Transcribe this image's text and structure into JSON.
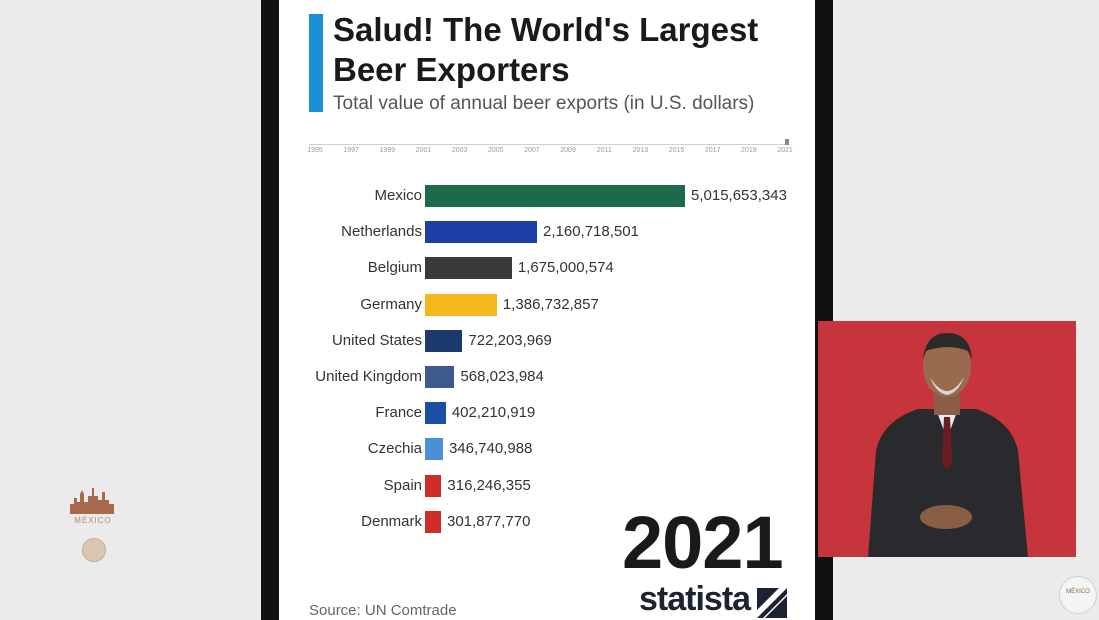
{
  "left_logo": {
    "text": "MÉXICO"
  },
  "header": {
    "title": "Salud! The World's Largest Beer Exporters",
    "subtitle": "Total value of annual beer exports (in U.S. dollars)"
  },
  "timeline": {
    "labels": [
      "1995",
      "1997",
      "1999",
      "2001",
      "2003",
      "2005",
      "2007",
      "2009",
      "2011",
      "2013",
      "2015",
      "2017",
      "2019",
      "2021"
    ]
  },
  "chart_data": {
    "type": "bar",
    "orientation": "horizontal",
    "title": "Salud! The World's Largest Beer Exporters",
    "subtitle": "Total value of annual beer exports (in U.S. dollars)",
    "categories": [
      "Mexico",
      "Netherlands",
      "Belgium",
      "Germany",
      "United States",
      "United Kingdom",
      "France",
      "Czechia",
      "Spain",
      "Denmark"
    ],
    "values": [
      5015653343,
      2160718501,
      1675000574,
      1386732857,
      722203969,
      568023984,
      402210919,
      346740988,
      316246355,
      301877770
    ],
    "value_labels": [
      "5,015,653,343",
      "2,160,718,501",
      "1,675,000,574",
      "1,386,732,857",
      "722,203,969",
      "568,023,984",
      "402,210,919",
      "346,740,988",
      "316,246,355",
      "301,877,770"
    ],
    "colors": [
      "#1b6b4a",
      "#1f3fa8",
      "#3a3a3a",
      "#f2b81c",
      "#1c3a6b",
      "#3d5a8c",
      "#1a4fa3",
      "#4a90d9",
      "#d12c2c",
      "#d12c2c"
    ],
    "year": "2021",
    "source": "Source: UN Comtrade"
  },
  "brand": {
    "name": "statista"
  },
  "badge": {
    "text": "MÉXICO"
  }
}
